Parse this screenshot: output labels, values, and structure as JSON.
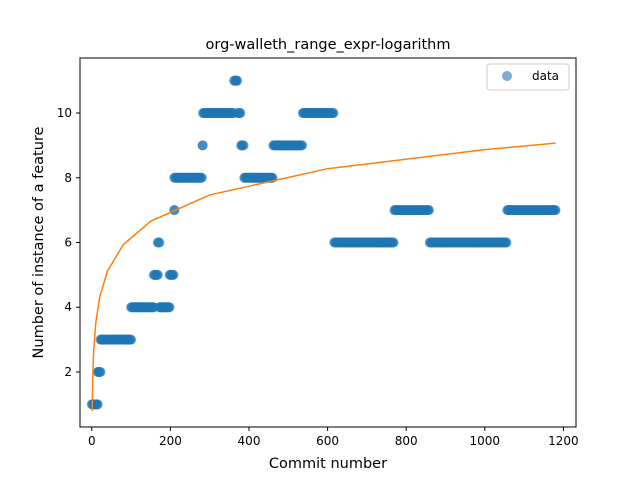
{
  "chart_data": {
    "type": "scatter",
    "title": "org-walleth_range_expr-logarithm",
    "xlabel": "Commit number",
    "ylabel": "Number of instance of a feature",
    "xlim": [
      -30,
      1232
    ],
    "ylim": [
      0.3,
      11.7
    ],
    "xticks": [
      0,
      200,
      400,
      600,
      800,
      1000,
      1200
    ],
    "yticks": [
      2,
      4,
      6,
      8,
      10
    ],
    "grid": false,
    "legend": {
      "position": "top-right",
      "entries": [
        "data"
      ]
    },
    "colors": {
      "scatter": "#1f77b4",
      "fit": "#ff7f0e"
    },
    "series": [
      {
        "name": "data",
        "kind": "scatter",
        "segments": [
          {
            "x_start": 0,
            "x_end": 15,
            "y": 1
          },
          {
            "x_start": 15,
            "x_end": 22,
            "y": 2
          },
          {
            "x_start": 22,
            "x_end": 100,
            "y": 3
          },
          {
            "x_start": 100,
            "x_end": 158,
            "y": 4
          },
          {
            "x_start": 158,
            "x_end": 168,
            "y": 5
          },
          {
            "x_start": 168,
            "x_end": 172,
            "y": 6
          },
          {
            "x_start": 172,
            "x_end": 198,
            "y": 4
          },
          {
            "x_start": 198,
            "x_end": 208,
            "y": 5
          },
          {
            "x_start": 210,
            "x_end": 210,
            "y": 7
          },
          {
            "x_start": 210,
            "x_end": 280,
            "y": 8
          },
          {
            "x_start": 282,
            "x_end": 282,
            "y": 9
          },
          {
            "x_start": 283,
            "x_end": 360,
            "y": 10
          },
          {
            "x_start": 362,
            "x_end": 370,
            "y": 11
          },
          {
            "x_start": 372,
            "x_end": 378,
            "y": 10
          },
          {
            "x_start": 380,
            "x_end": 386,
            "y": 9
          },
          {
            "x_start": 388,
            "x_end": 460,
            "y": 8
          },
          {
            "x_start": 462,
            "x_end": 535,
            "y": 9
          },
          {
            "x_start": 537,
            "x_end": 615,
            "y": 10
          },
          {
            "x_start": 617,
            "x_end": 768,
            "y": 6
          },
          {
            "x_start": 770,
            "x_end": 858,
            "y": 7
          },
          {
            "x_start": 860,
            "x_end": 1055,
            "y": 6
          },
          {
            "x_start": 1057,
            "x_end": 1180,
            "y": 7
          }
        ]
      },
      {
        "name": "",
        "kind": "line",
        "fit": "logarithmic",
        "x": [
          1,
          3,
          5,
          10,
          20,
          40,
          80,
          150,
          300,
          600,
          1000,
          1180
        ],
        "y": [
          0.8,
          2.09,
          2.69,
          3.5,
          4.31,
          5.12,
          5.93,
          6.66,
          7.47,
          8.28,
          8.87,
          9.07
        ]
      }
    ]
  }
}
